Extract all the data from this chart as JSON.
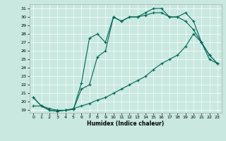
{
  "xlabel": "Humidex (Indice chaleur)",
  "xlim": [
    -0.5,
    23.5
  ],
  "ylim": [
    18.7,
    31.5
  ],
  "yticks": [
    19,
    20,
    21,
    22,
    23,
    24,
    25,
    26,
    27,
    28,
    29,
    30,
    31
  ],
  "xticks": [
    0,
    1,
    2,
    3,
    4,
    5,
    6,
    7,
    8,
    9,
    10,
    11,
    12,
    13,
    14,
    15,
    16,
    17,
    18,
    19,
    20,
    21,
    22,
    23
  ],
  "bg_color": "#c8e8e0",
  "line_color": "#006655",
  "line1_x": [
    0,
    1,
    2,
    3,
    4,
    5,
    6,
    7,
    8,
    9,
    10,
    11,
    12,
    13,
    14,
    15,
    16,
    17,
    18,
    19,
    20,
    21,
    22,
    23
  ],
  "line1_y": [
    20.5,
    19.5,
    19.0,
    18.9,
    19.0,
    19.1,
    21.5,
    22.0,
    25.3,
    26.0,
    30.0,
    29.5,
    30.0,
    30.0,
    30.5,
    31.0,
    31.0,
    30.0,
    30.0,
    30.5,
    29.5,
    27.0,
    25.0,
    24.5
  ],
  "line2_x": [
    0,
    1,
    2,
    3,
    4,
    5,
    6,
    7,
    8,
    9,
    10,
    11,
    12,
    13,
    14,
    15,
    16,
    17,
    18,
    19,
    20,
    21,
    22,
    23
  ],
  "line2_y": [
    20.5,
    19.5,
    19.0,
    18.9,
    19.0,
    19.1,
    22.2,
    27.5,
    28.0,
    27.0,
    30.0,
    29.5,
    30.0,
    30.0,
    30.2,
    30.5,
    30.5,
    30.0,
    30.0,
    29.5,
    28.5,
    27.0,
    25.5,
    24.5
  ],
  "line3_x": [
    0,
    1,
    2,
    3,
    4,
    5,
    6,
    7,
    8,
    9,
    10,
    11,
    12,
    13,
    14,
    15,
    16,
    17,
    18,
    19,
    20,
    21,
    22,
    23
  ],
  "line3_y": [
    19.5,
    19.5,
    19.2,
    19.0,
    19.0,
    19.2,
    19.5,
    19.8,
    20.2,
    20.5,
    21.0,
    21.5,
    22.0,
    22.5,
    23.0,
    23.8,
    24.5,
    25.0,
    25.5,
    26.5,
    28.0,
    27.0,
    25.5,
    24.5
  ]
}
